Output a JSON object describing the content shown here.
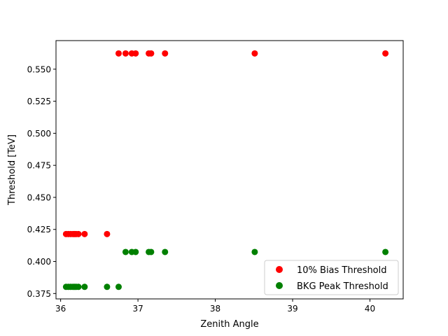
{
  "chart_data": {
    "type": "scatter",
    "title": "",
    "xlabel": "Zenith Angle",
    "ylabel": "Threshold [TeV]",
    "xlim": [
      35.94,
      40.43
    ],
    "ylim": [
      0.3708,
      0.5723
    ],
    "x_ticks": [
      36,
      37,
      38,
      39,
      40
    ],
    "y_ticks": [
      0.375,
      0.4,
      0.425,
      0.45,
      0.475,
      0.5,
      0.525,
      0.55
    ],
    "x_tick_labels": [
      "36",
      "37",
      "38",
      "39",
      "40"
    ],
    "y_tick_labels": [
      "0.375",
      "0.400",
      "0.425",
      "0.450",
      "0.475",
      "0.500",
      "0.525",
      "0.550"
    ],
    "grid": false,
    "legend_position": "lower right",
    "series": [
      {
        "name": "10% Bias Threshold",
        "color": "#ff0000",
        "points": [
          {
            "x": 36.07,
            "y": 0.4214
          },
          {
            "x": 36.1,
            "y": 0.4214
          },
          {
            "x": 36.13,
            "y": 0.4214
          },
          {
            "x": 36.16,
            "y": 0.4214
          },
          {
            "x": 36.18,
            "y": 0.4214
          },
          {
            "x": 36.2,
            "y": 0.4214
          },
          {
            "x": 36.23,
            "y": 0.4214
          },
          {
            "x": 36.31,
            "y": 0.4214
          },
          {
            "x": 36.6,
            "y": 0.4214
          },
          {
            "x": 36.75,
            "y": 0.5623
          },
          {
            "x": 36.84,
            "y": 0.5623
          },
          {
            "x": 36.92,
            "y": 0.5623
          },
          {
            "x": 36.97,
            "y": 0.5623
          },
          {
            "x": 37.14,
            "y": 0.5623
          },
          {
            "x": 37.17,
            "y": 0.5623
          },
          {
            "x": 37.35,
            "y": 0.5623
          },
          {
            "x": 38.51,
            "y": 0.5623
          },
          {
            "x": 40.2,
            "y": 0.5623
          }
        ]
      },
      {
        "name": "BKG Peak Threshold",
        "color": "#008000",
        "points": [
          {
            "x": 36.07,
            "y": 0.3802
          },
          {
            "x": 36.1,
            "y": 0.3802
          },
          {
            "x": 36.13,
            "y": 0.3802
          },
          {
            "x": 36.16,
            "y": 0.3802
          },
          {
            "x": 36.18,
            "y": 0.3802
          },
          {
            "x": 36.2,
            "y": 0.3802
          },
          {
            "x": 36.23,
            "y": 0.3802
          },
          {
            "x": 36.31,
            "y": 0.3802
          },
          {
            "x": 36.6,
            "y": 0.3802
          },
          {
            "x": 36.75,
            "y": 0.3802
          },
          {
            "x": 36.84,
            "y": 0.4074
          },
          {
            "x": 36.92,
            "y": 0.4074
          },
          {
            "x": 36.97,
            "y": 0.4074
          },
          {
            "x": 37.14,
            "y": 0.4074
          },
          {
            "x": 37.17,
            "y": 0.4074
          },
          {
            "x": 37.35,
            "y": 0.4074
          },
          {
            "x": 38.51,
            "y": 0.4074
          },
          {
            "x": 40.2,
            "y": 0.4074
          }
        ]
      }
    ]
  }
}
